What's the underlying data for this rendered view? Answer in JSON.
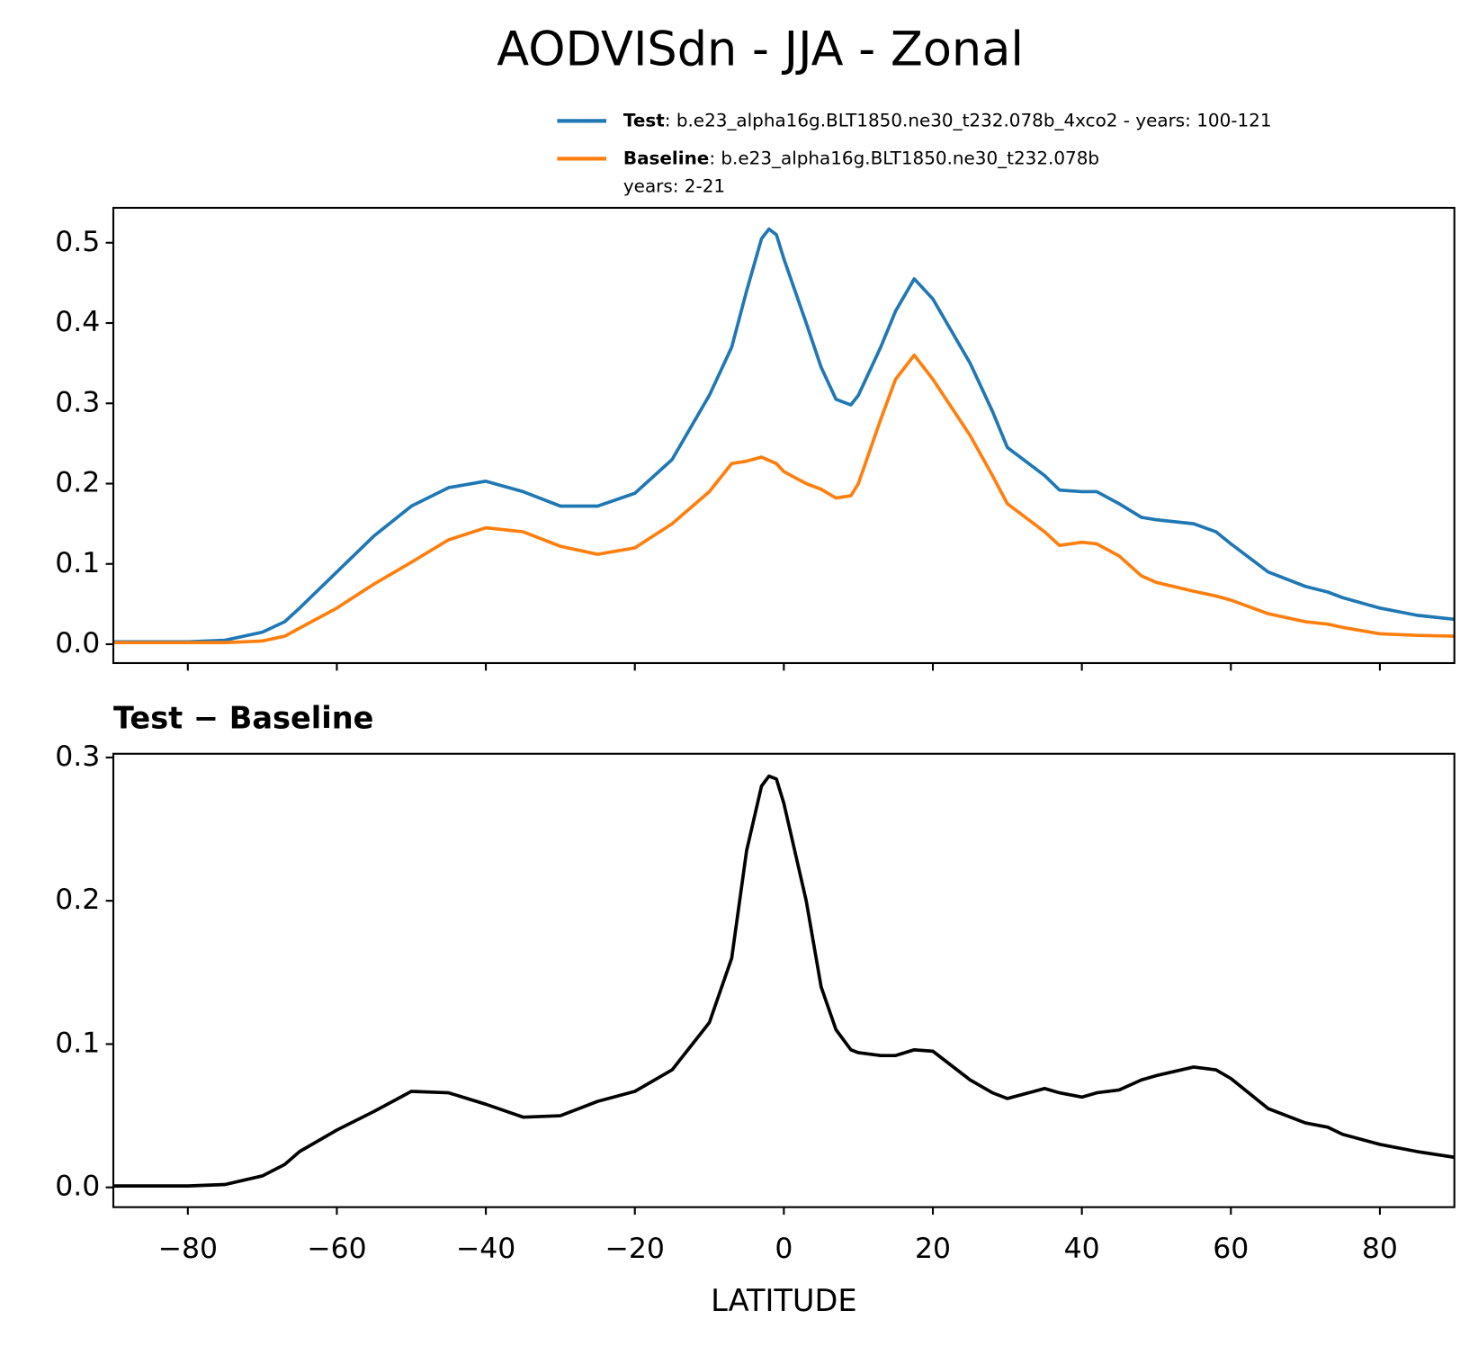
{
  "title": "AODVISdn - JJA - Zonal",
  "chart_data": [
    {
      "type": "line",
      "x": [
        -90,
        -85,
        -80,
        -75,
        -70,
        -67,
        -65,
        -60,
        -55,
        -50,
        -45,
        -40,
        -35,
        -30,
        -25,
        -20,
        -15,
        -10,
        -7,
        -5,
        -3,
        -2,
        -1,
        0,
        3,
        5,
        7,
        9,
        10,
        13,
        15,
        17.5,
        20,
        25,
        28,
        30,
        35,
        37,
        40,
        42,
        45,
        48,
        50,
        55,
        58,
        60,
        65,
        70,
        73,
        75,
        80,
        85,
        90
      ],
      "series": [
        {
          "name": "Test",
          "description": [
            ": b.e23_alpha16g.BLT1850.ne30_t232.078b_4xco2 - years: 100-121"
          ],
          "color": "#1f77b4",
          "values": [
            0.003,
            0.003,
            0.003,
            0.005,
            0.015,
            0.028,
            0.045,
            0.09,
            0.135,
            0.172,
            0.195,
            0.203,
            0.19,
            0.172,
            0.172,
            0.188,
            0.23,
            0.31,
            0.37,
            0.44,
            0.505,
            0.517,
            0.51,
            0.48,
            0.4,
            0.345,
            0.305,
            0.298,
            0.31,
            0.37,
            0.415,
            0.455,
            0.43,
            0.35,
            0.29,
            0.245,
            0.21,
            0.192,
            0.19,
            0.19,
            0.175,
            0.158,
            0.155,
            0.15,
            0.14,
            0.125,
            0.09,
            0.072,
            0.065,
            0.058,
            0.045,
            0.036,
            0.031
          ]
        },
        {
          "name": "Baseline",
          "description": [
            ": b.e23_alpha16g.BLT1850.ne30_t232.078b",
            "years: 2-21"
          ],
          "color": "#ff7f0e",
          "values": [
            0.002,
            0.002,
            0.002,
            0.002,
            0.004,
            0.01,
            0.02,
            0.045,
            0.075,
            0.102,
            0.13,
            0.145,
            0.14,
            0.122,
            0.112,
            0.12,
            0.15,
            0.19,
            0.225,
            0.228,
            0.233,
            0.229,
            0.225,
            0.215,
            0.2,
            0.193,
            0.182,
            0.185,
            0.2,
            0.28,
            0.33,
            0.36,
            0.33,
            0.26,
            0.21,
            0.175,
            0.14,
            0.123,
            0.127,
            0.125,
            0.11,
            0.085,
            0.077,
            0.066,
            0.06,
            0.055,
            0.038,
            0.028,
            0.025,
            0.021,
            0.013,
            0.011,
            0.01
          ]
        }
      ],
      "xlim": [
        -90,
        90
      ],
      "xticks": [
        -80,
        -60,
        -40,
        -20,
        0,
        20,
        40,
        60,
        80
      ],
      "ylim": [
        -0.0235,
        0.5435
      ],
      "yticks": [
        {
          "value": 0,
          "label": "0.0"
        },
        0.1,
        0.2,
        0.3,
        0.4,
        0.5
      ]
    },
    {
      "type": "line",
      "title": "Test − Baseline",
      "xlabel": "LATITUDE",
      "x": [
        -90,
        -85,
        -80,
        -75,
        -70,
        -67,
        -65,
        -60,
        -55,
        -50,
        -45,
        -40,
        -35,
        -30,
        -25,
        -20,
        -15,
        -10,
        -7,
        -5,
        -3,
        -2,
        -1,
        0,
        3,
        5,
        7,
        9,
        10,
        13,
        15,
        17.5,
        20,
        25,
        28,
        30,
        35,
        37,
        40,
        42,
        45,
        48,
        50,
        55,
        58,
        60,
        65,
        70,
        73,
        75,
        80,
        85,
        90
      ],
      "series": [
        {
          "color": "#000000",
          "values": [
            0.001,
            0.001,
            0.001,
            0.002,
            0.008,
            0.016,
            0.025,
            0.04,
            0.053,
            0.067,
            0.066,
            0.058,
            0.049,
            0.05,
            0.06,
            0.067,
            0.082,
            0.115,
            0.16,
            0.235,
            0.28,
            0.287,
            0.285,
            0.268,
            0.2,
            0.14,
            0.11,
            0.096,
            0.094,
            0.092,
            0.092,
            0.096,
            0.095,
            0.075,
            0.066,
            0.062,
            0.069,
            0.066,
            0.063,
            0.066,
            0.068,
            0.075,
            0.078,
            0.084,
            0.082,
            0.076,
            0.055,
            0.045,
            0.042,
            0.037,
            0.03,
            0.025,
            0.021
          ]
        }
      ],
      "xlim": [
        -90,
        90
      ],
      "xticks": [
        {
          "value": -80,
          "label": "−80"
        },
        {
          "value": -60,
          "label": "−60"
        },
        {
          "value": -40,
          "label": "−40"
        },
        {
          "value": -20,
          "label": "−20"
        },
        0,
        20,
        40,
        60,
        80
      ],
      "ylim": [
        -0.0138,
        0.3026
      ],
      "yticks": [
        {
          "value": 0,
          "label": "0.0"
        },
        0.1,
        0.2,
        0.3
      ]
    }
  ]
}
